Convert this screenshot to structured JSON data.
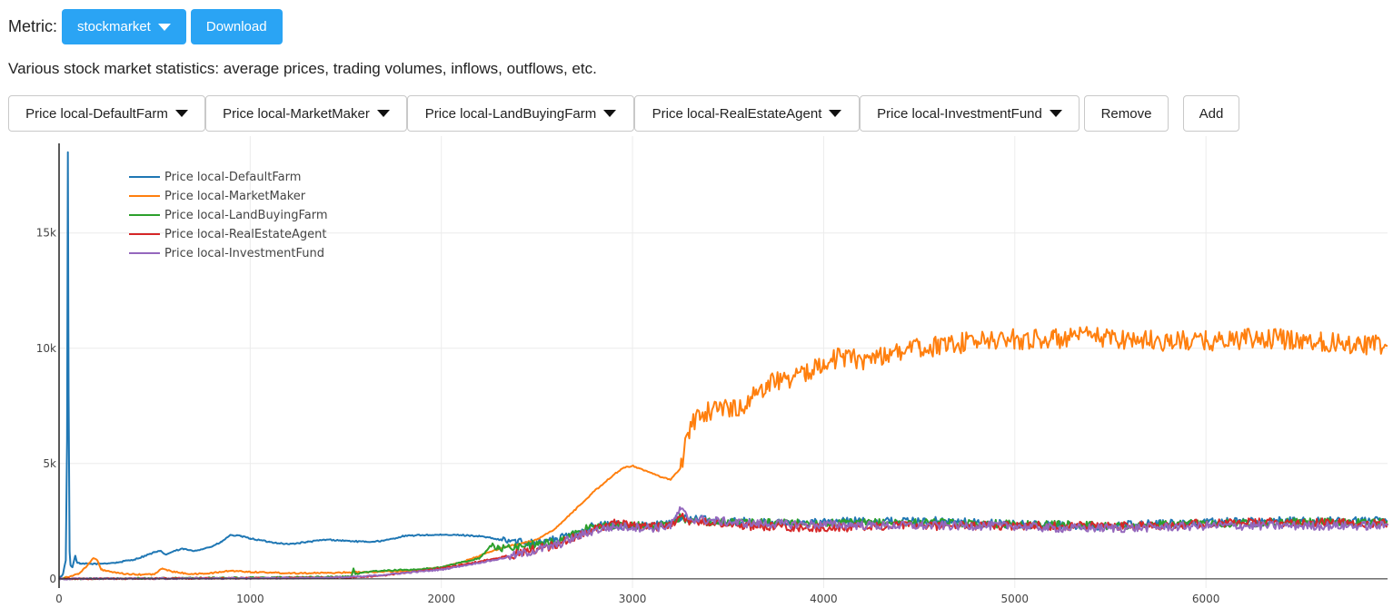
{
  "header": {
    "metric_label": "Metric:",
    "metric_value": "stockmarket",
    "download_label": "Download"
  },
  "description": "Various stock market statistics: average prices, trading volumes, inflows, outflows, etc.",
  "series_selectors": [
    {
      "label": "Price local-DefaultFarm"
    },
    {
      "label": "Price local-MarketMaker"
    },
    {
      "label": "Price local-LandBuyingFarm"
    },
    {
      "label": "Price local-RealEstateAgent"
    },
    {
      "label": "Price local-InvestmentFund"
    }
  ],
  "remove_label": "Remove",
  "add_label": "Add",
  "chart_data": {
    "type": "line",
    "title": "",
    "xlabel": "",
    "ylabel": "",
    "xlim": [
      0,
      6950
    ],
    "ylim": [
      -400,
      19200
    ],
    "x_ticks": [
      0,
      1000,
      2000,
      3000,
      4000,
      5000,
      6000
    ],
    "x_tick_labels": [
      "0",
      "1000",
      "2000",
      "3000",
      "4000",
      "5000",
      "6000"
    ],
    "y_ticks": [
      0,
      5000,
      10000,
      15000
    ],
    "y_tick_labels": [
      "0",
      "5k",
      "10k",
      "15k"
    ],
    "legend_position": "top-left",
    "series": [
      {
        "name": "Price local-DefaultFarm",
        "color": "#1f77b4",
        "noise_from": 2300,
        "noise_amp": 180,
        "points": [
          [
            0,
            0
          ],
          [
            20,
            200
          ],
          [
            35,
            800
          ],
          [
            42,
            6000
          ],
          [
            46,
            18500
          ],
          [
            50,
            8000
          ],
          [
            55,
            1200
          ],
          [
            60,
            600
          ],
          [
            70,
            500
          ],
          [
            85,
            1000
          ],
          [
            95,
            700
          ],
          [
            110,
            650
          ],
          [
            150,
            650
          ],
          [
            200,
            650
          ],
          [
            300,
            700
          ],
          [
            400,
            850
          ],
          [
            450,
            1000
          ],
          [
            500,
            1150
          ],
          [
            530,
            1200
          ],
          [
            560,
            1050
          ],
          [
            600,
            1200
          ],
          [
            650,
            1300
          ],
          [
            700,
            1200
          ],
          [
            800,
            1400
          ],
          [
            850,
            1600
          ],
          [
            880,
            1800
          ],
          [
            900,
            1900
          ],
          [
            950,
            1850
          ],
          [
            1000,
            1750
          ],
          [
            1100,
            1600
          ],
          [
            1200,
            1500
          ],
          [
            1300,
            1600
          ],
          [
            1400,
            1700
          ],
          [
            1500,
            1650
          ],
          [
            1600,
            1600
          ],
          [
            1700,
            1650
          ],
          [
            1800,
            1850
          ],
          [
            1900,
            1900
          ],
          [
            2000,
            1900
          ],
          [
            2100,
            1900
          ],
          [
            2200,
            1850
          ],
          [
            2270,
            1750
          ],
          [
            2300,
            1700
          ],
          [
            2400,
            1600
          ],
          [
            2500,
            1600
          ],
          [
            2600,
            1700
          ],
          [
            2700,
            2000
          ],
          [
            2800,
            2300
          ],
          [
            2900,
            2350
          ],
          [
            3000,
            2300
          ],
          [
            3100,
            2300
          ],
          [
            3200,
            2400
          ],
          [
            3250,
            2700
          ],
          [
            3300,
            2600
          ],
          [
            3500,
            2500
          ],
          [
            3800,
            2400
          ],
          [
            4200,
            2500
          ],
          [
            4600,
            2500
          ],
          [
            5000,
            2350
          ],
          [
            5400,
            2300
          ],
          [
            5800,
            2400
          ],
          [
            6200,
            2500
          ],
          [
            6500,
            2500
          ],
          [
            6950,
            2500
          ]
        ]
      },
      {
        "name": "Price local-MarketMaker",
        "color": "#ff7f0e",
        "noise_from": 3250,
        "noise_amp": 450,
        "points": [
          [
            0,
            0
          ],
          [
            100,
            200
          ],
          [
            150,
            600
          ],
          [
            180,
            900
          ],
          [
            200,
            800
          ],
          [
            220,
            400
          ],
          [
            300,
            250
          ],
          [
            400,
            180
          ],
          [
            500,
            200
          ],
          [
            540,
            450
          ],
          [
            560,
            400
          ],
          [
            600,
            300
          ],
          [
            700,
            200
          ],
          [
            800,
            250
          ],
          [
            900,
            350
          ],
          [
            1000,
            300
          ],
          [
            1200,
            250
          ],
          [
            1400,
            250
          ],
          [
            1500,
            280
          ],
          [
            1800,
            330
          ],
          [
            2000,
            500
          ],
          [
            2100,
            700
          ],
          [
            2200,
            1000
          ],
          [
            2300,
            1300
          ],
          [
            2400,
            1500
          ],
          [
            2500,
            1700
          ],
          [
            2600,
            2200
          ],
          [
            2700,
            3000
          ],
          [
            2800,
            3800
          ],
          [
            2900,
            4500
          ],
          [
            2950,
            4800
          ],
          [
            3000,
            4900
          ],
          [
            3050,
            4750
          ],
          [
            3100,
            4600
          ],
          [
            3150,
            4400
          ],
          [
            3200,
            4300
          ],
          [
            3250,
            4800
          ],
          [
            3300,
            6500
          ],
          [
            3350,
            7200
          ],
          [
            3400,
            7300
          ],
          [
            3500,
            7400
          ],
          [
            3600,
            7600
          ],
          [
            3650,
            8000
          ],
          [
            3700,
            8500
          ],
          [
            3800,
            8700
          ],
          [
            3900,
            8800
          ],
          [
            4000,
            9500
          ],
          [
            4100,
            9600
          ],
          [
            4200,
            9500
          ],
          [
            4300,
            9700
          ],
          [
            4400,
            9900
          ],
          [
            4500,
            10000
          ],
          [
            4600,
            10100
          ],
          [
            4800,
            10300
          ],
          [
            5000,
            10400
          ],
          [
            5200,
            10400
          ],
          [
            5400,
            10500
          ],
          [
            5600,
            10400
          ],
          [
            5800,
            10300
          ],
          [
            6000,
            10300
          ],
          [
            6200,
            10400
          ],
          [
            6400,
            10400
          ],
          [
            6600,
            10300
          ],
          [
            6800,
            10200
          ],
          [
            6950,
            10100
          ]
        ]
      },
      {
        "name": "Price local-LandBuyingFarm",
        "color": "#2ca02c",
        "noise_from": 2250,
        "noise_amp": 170,
        "points": [
          [
            0,
            0
          ],
          [
            1000,
            50
          ],
          [
            1400,
            80
          ],
          [
            1530,
            100
          ],
          [
            1540,
            450
          ],
          [
            1550,
            200
          ],
          [
            1600,
            300
          ],
          [
            1700,
            350
          ],
          [
            1900,
            420
          ],
          [
            2000,
            500
          ],
          [
            2100,
            700
          ],
          [
            2200,
            900
          ],
          [
            2270,
            1500
          ],
          [
            2300,
            1300
          ],
          [
            2400,
            1400
          ],
          [
            2500,
            1500
          ],
          [
            2600,
            1600
          ],
          [
            2700,
            2000
          ],
          [
            2800,
            2300
          ],
          [
            2900,
            2300
          ],
          [
            3000,
            2300
          ],
          [
            3100,
            2300
          ],
          [
            3200,
            2350
          ],
          [
            3250,
            2700
          ],
          [
            3300,
            2500
          ],
          [
            3600,
            2450
          ],
          [
            4000,
            2400
          ],
          [
            4400,
            2450
          ],
          [
            4800,
            2400
          ],
          [
            5200,
            2350
          ],
          [
            5600,
            2300
          ],
          [
            6000,
            2400
          ],
          [
            6400,
            2450
          ],
          [
            6950,
            2450
          ]
        ]
      },
      {
        "name": "Price local-RealEstateAgent",
        "color": "#d62728",
        "noise_from": 2350,
        "noise_amp": 190,
        "points": [
          [
            0,
            0
          ],
          [
            1000,
            30
          ],
          [
            1500,
            50
          ],
          [
            1700,
            150
          ],
          [
            1800,
            250
          ],
          [
            1900,
            350
          ],
          [
            2000,
            450
          ],
          [
            2100,
            600
          ],
          [
            2200,
            750
          ],
          [
            2300,
            900
          ],
          [
            2400,
            1100
          ],
          [
            2500,
            1300
          ],
          [
            2600,
            1450
          ],
          [
            2700,
            1800
          ],
          [
            2800,
            2200
          ],
          [
            2900,
            2400
          ],
          [
            3000,
            2300
          ],
          [
            3100,
            2250
          ],
          [
            3200,
            2350
          ],
          [
            3250,
            2700
          ],
          [
            3300,
            2500
          ],
          [
            3600,
            2300
          ],
          [
            4000,
            2200
          ],
          [
            4400,
            2300
          ],
          [
            4800,
            2300
          ],
          [
            5200,
            2300
          ],
          [
            5600,
            2300
          ],
          [
            6000,
            2400
          ],
          [
            6400,
            2450
          ],
          [
            6950,
            2400
          ]
        ]
      },
      {
        "name": "Price local-InvestmentFund",
        "color": "#9467bd",
        "noise_from": 2350,
        "noise_amp": 190,
        "points": [
          [
            0,
            0
          ],
          [
            1000,
            20
          ],
          [
            1400,
            50
          ],
          [
            1600,
            100
          ],
          [
            1800,
            250
          ],
          [
            2000,
            400
          ],
          [
            2100,
            550
          ],
          [
            2200,
            700
          ],
          [
            2300,
            850
          ],
          [
            2400,
            1050
          ],
          [
            2500,
            1250
          ],
          [
            2600,
            1450
          ],
          [
            2700,
            1800
          ],
          [
            2800,
            2100
          ],
          [
            2900,
            2250
          ],
          [
            3000,
            2250
          ],
          [
            3100,
            2200
          ],
          [
            3200,
            2300
          ],
          [
            3250,
            3000
          ],
          [
            3300,
            2600
          ],
          [
            3600,
            2400
          ],
          [
            4000,
            2350
          ],
          [
            4400,
            2300
          ],
          [
            4800,
            2300
          ],
          [
            5000,
            2300
          ],
          [
            5200,
            2200
          ],
          [
            5600,
            2200
          ],
          [
            6000,
            2300
          ],
          [
            6400,
            2300
          ],
          [
            6950,
            2300
          ]
        ]
      }
    ]
  }
}
